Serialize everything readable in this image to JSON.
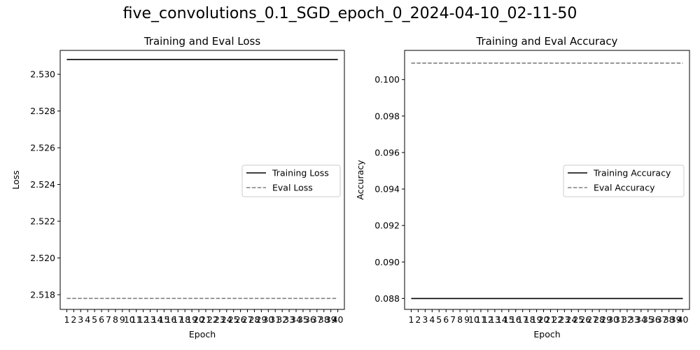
{
  "suptitle": "five_convolutions_0.1_SGD_epoch_0_2024-04-10_02-11-50",
  "colors": {
    "training": "#000000",
    "eval": "#808080",
    "axes": "#000000",
    "legend_border": "#cccccc"
  },
  "chart_data": [
    {
      "type": "line",
      "title": "Training and Eval Loss",
      "xlabel": "Epoch",
      "ylabel": "Loss",
      "x": [
        1,
        2,
        3,
        4,
        5,
        6,
        7,
        8,
        9,
        10,
        11,
        12,
        13,
        14,
        15,
        16,
        17,
        18,
        19,
        20,
        21,
        22,
        23,
        24,
        25,
        26,
        27,
        28,
        29,
        30,
        31,
        32,
        33,
        34,
        35,
        36,
        37,
        38,
        39,
        40
      ],
      "ylim": [
        2.5172,
        2.5313
      ],
      "yticks": [
        "2.518",
        "2.520",
        "2.522",
        "2.524",
        "2.526",
        "2.528",
        "2.530"
      ],
      "yticks_values": [
        2.518,
        2.52,
        2.522,
        2.524,
        2.526,
        2.528,
        2.53
      ],
      "legend_position": "center-right",
      "grid": false,
      "series": [
        {
          "name": "Training Loss",
          "style": "solid",
          "color": "#000000",
          "values": [
            2.5308,
            2.5308,
            2.5308,
            2.5308,
            2.5308,
            2.5308,
            2.5308,
            2.5308,
            2.5308,
            2.5308,
            2.5308,
            2.5308,
            2.5308,
            2.5308,
            2.5308,
            2.5308,
            2.5308,
            2.5308,
            2.5308,
            2.5308,
            2.5308,
            2.5308,
            2.5308,
            2.5308,
            2.5308,
            2.5308,
            2.5308,
            2.5308,
            2.5308,
            2.5308,
            2.5308,
            2.5308,
            2.5308,
            2.5308,
            2.5308,
            2.5308,
            2.5308,
            2.5308,
            2.5308,
            2.5308
          ]
        },
        {
          "name": "Eval Loss",
          "style": "dashed",
          "color": "#808080",
          "values": [
            2.5178,
            2.5178,
            2.5178,
            2.5178,
            2.5178,
            2.5178,
            2.5178,
            2.5178,
            2.5178,
            2.5178,
            2.5178,
            2.5178,
            2.5178,
            2.5178,
            2.5178,
            2.5178,
            2.5178,
            2.5178,
            2.5178,
            2.5178,
            2.5178,
            2.5178,
            2.5178,
            2.5178,
            2.5178,
            2.5178,
            2.5178,
            2.5178,
            2.5178,
            2.5178,
            2.5178,
            2.5178,
            2.5178,
            2.5178,
            2.5178,
            2.5178,
            2.5178,
            2.5178,
            2.5178,
            2.5178
          ]
        }
      ]
    },
    {
      "type": "line",
      "title": "Training and Eval Accuracy",
      "xlabel": "Epoch",
      "ylabel": "Accuracy",
      "x": [
        1,
        2,
        3,
        4,
        5,
        6,
        7,
        8,
        9,
        10,
        11,
        12,
        13,
        14,
        15,
        16,
        17,
        18,
        19,
        20,
        21,
        22,
        23,
        24,
        25,
        26,
        27,
        28,
        29,
        30,
        31,
        32,
        33,
        34,
        35,
        36,
        37,
        38,
        39,
        40
      ],
      "ylim": [
        0.0874,
        0.1016
      ],
      "yticks": [
        "0.088",
        "0.090",
        "0.092",
        "0.094",
        "0.096",
        "0.098",
        "0.100"
      ],
      "yticks_values": [
        0.088,
        0.09,
        0.092,
        0.094,
        0.096,
        0.098,
        0.1
      ],
      "legend_position": "center-right",
      "grid": false,
      "series": [
        {
          "name": "Training Accuracy",
          "style": "solid",
          "color": "#000000",
          "values": [
            0.088,
            0.088,
            0.088,
            0.088,
            0.088,
            0.088,
            0.088,
            0.088,
            0.088,
            0.088,
            0.088,
            0.088,
            0.088,
            0.088,
            0.088,
            0.088,
            0.088,
            0.088,
            0.088,
            0.088,
            0.088,
            0.088,
            0.088,
            0.088,
            0.088,
            0.088,
            0.088,
            0.088,
            0.088,
            0.088,
            0.088,
            0.088,
            0.088,
            0.088,
            0.088,
            0.088,
            0.088,
            0.088,
            0.088,
            0.088
          ]
        },
        {
          "name": "Eval Accuracy",
          "style": "dashed",
          "color": "#808080",
          "values": [
            0.1009,
            0.1009,
            0.1009,
            0.1009,
            0.1009,
            0.1009,
            0.1009,
            0.1009,
            0.1009,
            0.1009,
            0.1009,
            0.1009,
            0.1009,
            0.1009,
            0.1009,
            0.1009,
            0.1009,
            0.1009,
            0.1009,
            0.1009,
            0.1009,
            0.1009,
            0.1009,
            0.1009,
            0.1009,
            0.1009,
            0.1009,
            0.1009,
            0.1009,
            0.1009,
            0.1009,
            0.1009,
            0.1009,
            0.1009,
            0.1009,
            0.1009,
            0.1009,
            0.1009,
            0.1009,
            0.1009
          ]
        }
      ]
    }
  ]
}
